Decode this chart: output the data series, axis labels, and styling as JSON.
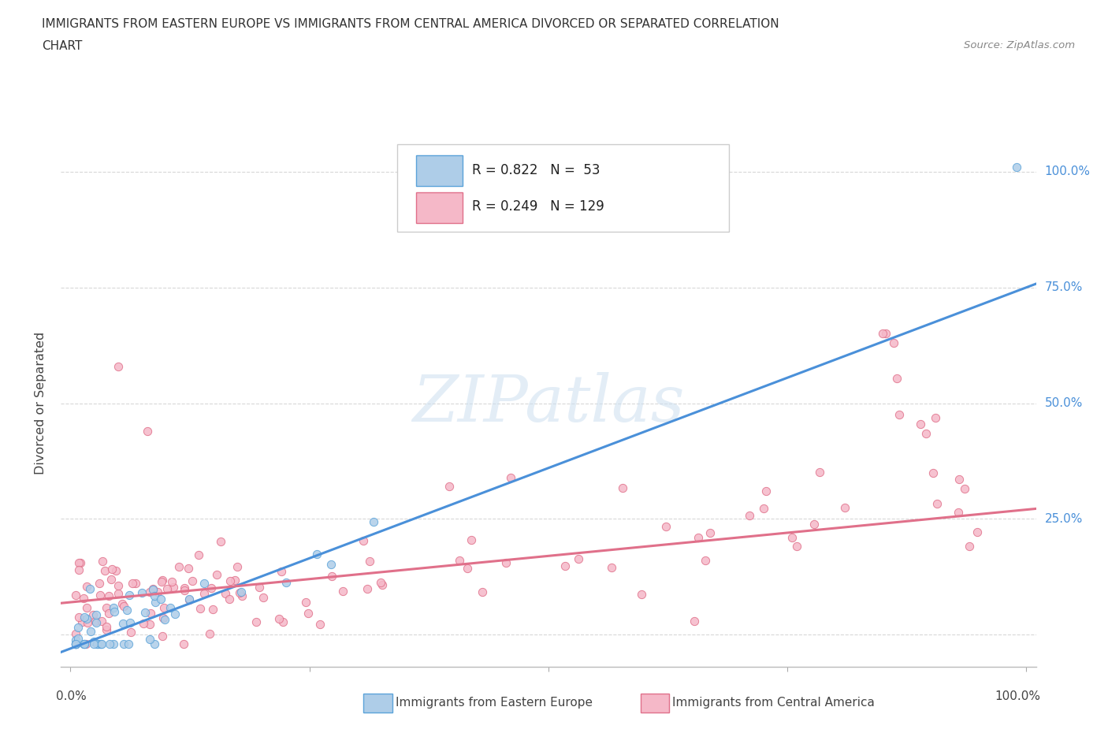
{
  "title_line1": "IMMIGRANTS FROM EASTERN EUROPE VS IMMIGRANTS FROM CENTRAL AMERICA DIVORCED OR SEPARATED CORRELATION",
  "title_line2": "CHART",
  "source": "Source: ZipAtlas.com",
  "ylabel": "Divorced or Separated",
  "blue_R": 0.822,
  "blue_N": 53,
  "pink_R": 0.249,
  "pink_N": 129,
  "blue_color": "#aecde8",
  "blue_edge_color": "#5ba3d9",
  "blue_line_color": "#4a90d9",
  "pink_color": "#f5b8c8",
  "pink_edge_color": "#e0708a",
  "pink_line_color": "#e0708a",
  "watermark": "ZIPatlas",
  "background_color": "#ffffff",
  "grid_color": "#d8d8d8",
  "blue_line_slope": 0.78,
  "blue_line_intercept": -0.03,
  "pink_line_slope": 0.2,
  "pink_line_intercept": 0.07,
  "ytick_positions": [
    0.0,
    0.25,
    0.5,
    0.75,
    1.0
  ],
  "ytick_labels": [
    "",
    "25.0%",
    "50.0%",
    "75.0%",
    "100.0%"
  ],
  "right_label_color": "#4a90d9"
}
